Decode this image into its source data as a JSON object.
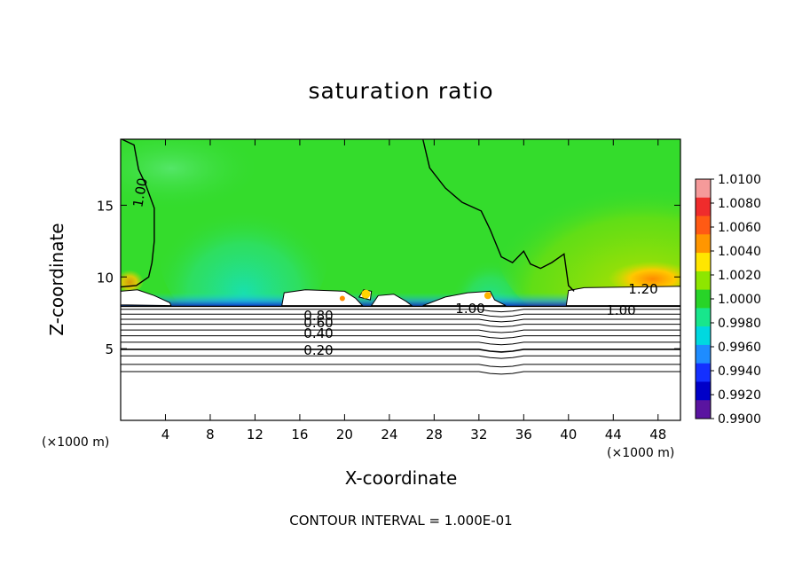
{
  "chart_data": {
    "type": "heatmap",
    "title": "saturation ratio",
    "xlabel": "X-coordinate",
    "ylabel": "Z-coordinate",
    "x_unit": "(×1000 m)",
    "z_unit": "(×1000 m)",
    "xlim": [
      0,
      50
    ],
    "ylim": [
      0,
      19.6
    ],
    "x_ticks": [
      4,
      8,
      12,
      16,
      20,
      24,
      28,
      32,
      36,
      40,
      44,
      48
    ],
    "y_ticks": [
      5,
      10,
      15
    ],
    "colorbar": {
      "range": [
        0.99,
        1.01
      ],
      "tick_labels": [
        "1.0100",
        "1.0080",
        "1.0060",
        "1.0040",
        "1.0020",
        "1.0000",
        "0.9980",
        "0.9960",
        "0.9940",
        "0.9920",
        "0.9900"
      ],
      "colors": [
        "#f59a9a",
        "#ef2c2c",
        "#ff5a14",
        "#ff9600",
        "#ffe600",
        "#8ee600",
        "#28d428",
        "#18e68c",
        "#00d8e0",
        "#1e8cff",
        "#1430ff",
        "#0000c8",
        "#5a14a0"
      ]
    },
    "contour_labels": [
      "1.00",
      "1.20",
      "1.00",
      "1.00",
      "0.80",
      "0.60",
      "0.40",
      "0.20"
    ],
    "contour_interval_text": "CONTOUR INTERVAL = 1.000E-01",
    "lower_contours_z": [
      3.4,
      3.9,
      4.5,
      4.95,
      5.45,
      5.9,
      6.3,
      6.7,
      7.05,
      7.4,
      7.75
    ]
  }
}
